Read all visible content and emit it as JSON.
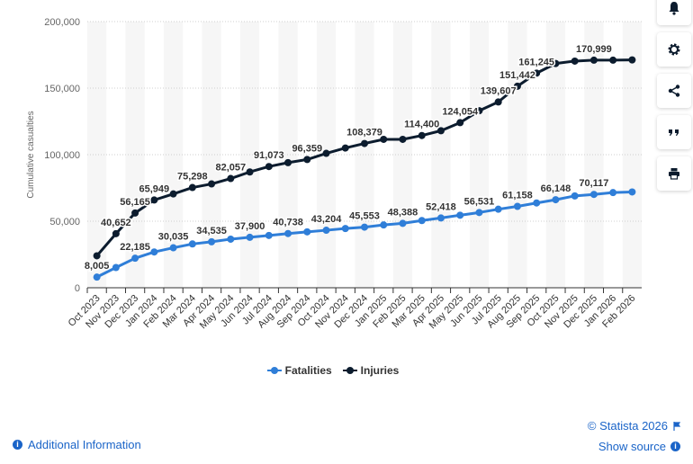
{
  "chart_data": {
    "type": "line",
    "ylabel": "Cumulative casualties",
    "ylim": [
      0,
      200000
    ],
    "yticks": [
      0,
      50000,
      100000,
      150000,
      200000
    ],
    "ytick_labels": [
      "0",
      "50,000",
      "100,000",
      "150,000",
      "200,000"
    ],
    "categories": [
      "Oct 2023",
      "Nov 2023",
      "Dec 2023",
      "Jan 2024",
      "Feb 2024",
      "Mar 2024",
      "Apr 2024",
      "May 2024",
      "Jun 2024",
      "Jul 2024",
      "Aug 2024",
      "Sep 2024",
      "Oct 2024",
      "Nov 2024",
      "Dec 2024",
      "Jan 2025",
      "Feb 2025",
      "Mar 2025",
      "Apr 2025",
      "May 2025",
      "Jun 2025",
      "Jul 2025",
      "Aug 2025",
      "Sep 2025",
      "Oct 2025",
      "Nov 2025",
      "Dec 2025",
      "Jan 2026",
      "Feb 2026"
    ],
    "series": [
      {
        "name": "Fatalities",
        "color": "#2f7ed8",
        "values": [
          8005,
          15207,
          22185,
          26900,
          30035,
          32900,
          34535,
          36500,
          37900,
          39300,
          40738,
          42000,
          43204,
          44500,
          45553,
          47200,
          48388,
          50500,
          52418,
          54500,
          56531,
          59000,
          61158,
          63700,
          66148,
          69000,
          70117,
          71500,
          72000
        ],
        "labels": {
          "0": "8,005",
          "2": "22,185",
          "4": "30,035",
          "6": "34,535",
          "8": "37,900",
          "10": "40,738",
          "12": "43,204",
          "14": "45,553",
          "16": "48,388",
          "18": "52,418",
          "20": "56,531",
          "22": "61,158",
          "24": "66,148",
          "26": "70,117"
        }
      },
      {
        "name": "Injuries",
        "color": "#0c1c2e",
        "values": [
          24000,
          40652,
          56165,
          65949,
          70500,
          75298,
          78000,
          82057,
          87000,
          91073,
          94000,
          96359,
          101000,
          105000,
          108379,
          111500,
          111500,
          114400,
          118000,
          124054,
          133000,
          139607,
          151442,
          161245,
          168500,
          170300,
          170999,
          171000,
          171200
        ],
        "labels": {
          "1": "40,652",
          "2": "56,165",
          "3": "65,949",
          "5": "75,298",
          "7": "82,057",
          "9": "91,073",
          "11": "96,359",
          "14": "108,379",
          "17": "114,400",
          "19": "124,054",
          "21": "139,607",
          "22": "151,442",
          "23": "161,245",
          "26": "170,999"
        }
      }
    ],
    "legend_position": "bottom-center",
    "grid": true
  },
  "footer": {
    "copyright": "© Statista 2026",
    "show_source": "Show source",
    "additional_info": "Additional Information"
  },
  "toolbar": {
    "icons": [
      "bell-icon",
      "gear-icon",
      "share-icon",
      "quote-icon",
      "print-icon"
    ]
  }
}
